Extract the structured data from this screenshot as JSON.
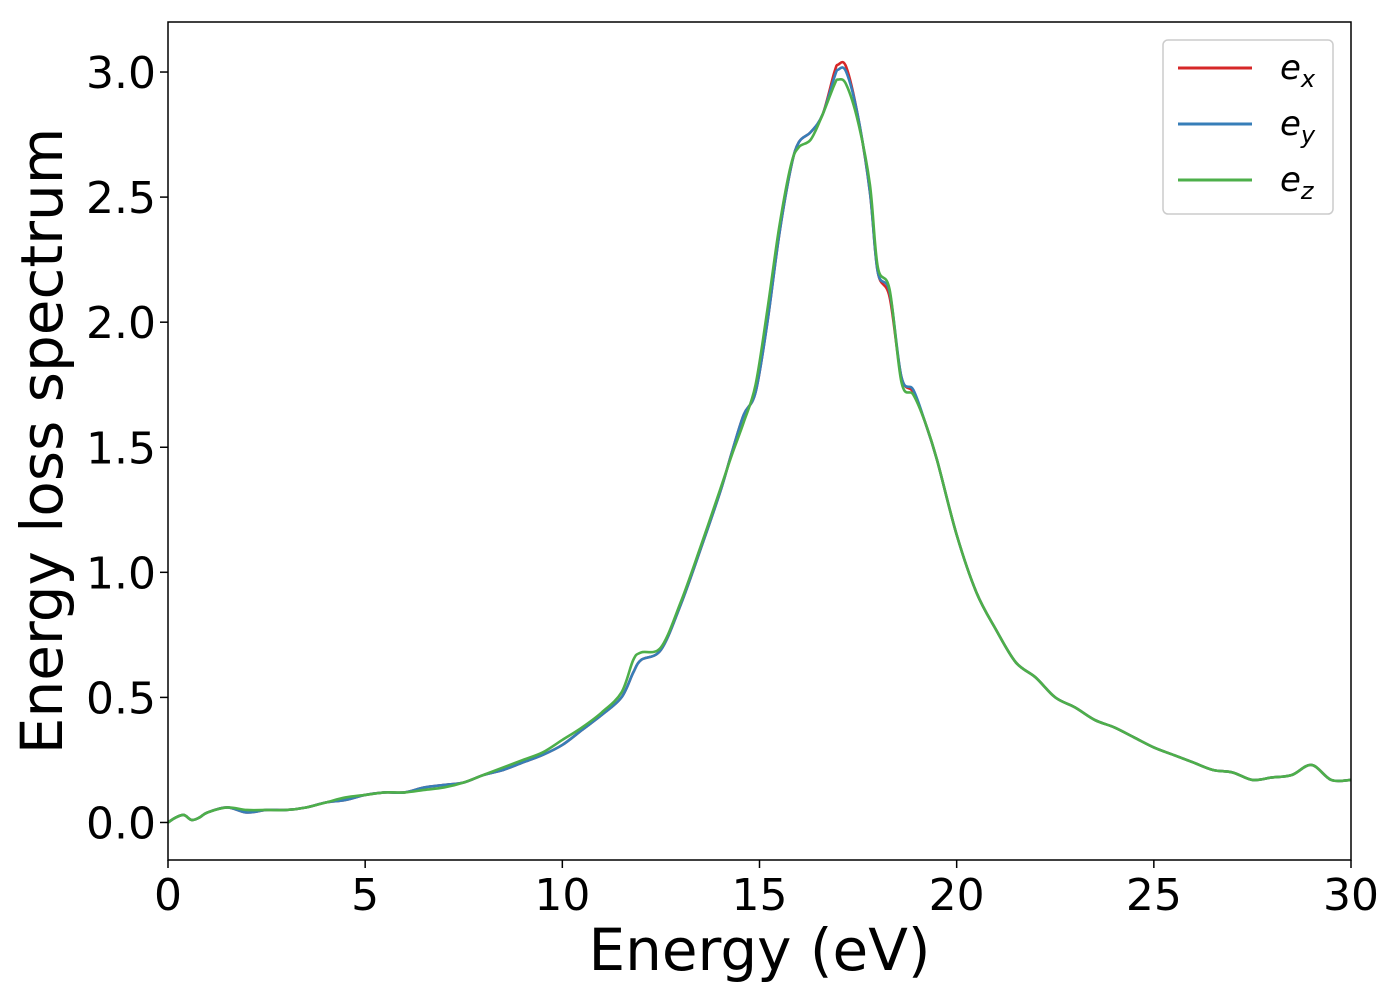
{
  "chart_data": {
    "type": "line",
    "xlabel": "Energy (eV)",
    "ylabel": "Energy loss spectrum",
    "xlim": [
      0,
      30
    ],
    "ylim": [
      -0.15,
      3.2
    ],
    "xticks": [
      0,
      5,
      10,
      15,
      20,
      25,
      30
    ],
    "xtick_labels": [
      "0",
      "5",
      "10",
      "15",
      "20",
      "25",
      "30"
    ],
    "yticks": [
      0.0,
      0.5,
      1.0,
      1.5,
      2.0,
      2.5,
      3.0
    ],
    "ytick_labels": [
      "0.0",
      "0.5",
      "1.0",
      "1.5",
      "2.0",
      "2.5",
      "3.0"
    ],
    "grid": false,
    "legend_position": "top-right",
    "x": [
      0,
      0.2,
      0.4,
      0.6,
      0.8,
      1.0,
      1.5,
      2.0,
      2.5,
      3.0,
      3.5,
      4.0,
      4.5,
      5.0,
      5.5,
      6.0,
      6.5,
      7.0,
      7.5,
      8.0,
      8.5,
      9.0,
      9.5,
      10.0,
      10.5,
      11.0,
      11.5,
      11.8,
      12.0,
      12.5,
      13.0,
      13.5,
      14.0,
      14.3,
      14.6,
      14.9,
      15.2,
      15.5,
      15.8,
      16.0,
      16.3,
      16.6,
      16.9,
      17.0,
      17.2,
      17.5,
      17.8,
      18.0,
      18.3,
      18.6,
      18.9,
      19.2,
      19.5,
      20.0,
      20.5,
      21.0,
      21.5,
      22.0,
      22.5,
      23.0,
      23.5,
      24.0,
      24.5,
      25.0,
      25.5,
      26.0,
      26.5,
      27.0,
      27.5,
      28.0,
      28.5,
      29.0,
      29.5,
      30.0
    ],
    "series": [
      {
        "name": "e_x",
        "label_base": "e",
        "label_sub": "x",
        "color": "#d62728",
        "values": [
          0.0,
          0.02,
          0.03,
          0.01,
          0.02,
          0.04,
          0.06,
          0.04,
          0.05,
          0.05,
          0.06,
          0.08,
          0.09,
          0.11,
          0.12,
          0.12,
          0.14,
          0.15,
          0.16,
          0.19,
          0.21,
          0.24,
          0.27,
          0.31,
          0.37,
          0.43,
          0.5,
          0.6,
          0.65,
          0.69,
          0.87,
          1.09,
          1.32,
          1.48,
          1.63,
          1.72,
          2.0,
          2.35,
          2.62,
          2.72,
          2.76,
          2.83,
          3.0,
          3.03,
          3.02,
          2.82,
          2.52,
          2.2,
          2.1,
          1.78,
          1.72,
          1.6,
          1.45,
          1.15,
          0.92,
          0.77,
          0.64,
          0.58,
          0.5,
          0.46,
          0.41,
          0.38,
          0.34,
          0.3,
          0.27,
          0.24,
          0.21,
          0.2,
          0.17,
          0.18,
          0.19,
          0.23,
          0.17,
          0.17
        ]
      },
      {
        "name": "e_y",
        "label_base": "e",
        "label_sub": "y",
        "color": "#377eb8",
        "values": [
          0.0,
          0.02,
          0.03,
          0.01,
          0.02,
          0.04,
          0.06,
          0.04,
          0.05,
          0.05,
          0.06,
          0.08,
          0.09,
          0.11,
          0.12,
          0.12,
          0.14,
          0.15,
          0.16,
          0.19,
          0.21,
          0.24,
          0.27,
          0.31,
          0.37,
          0.43,
          0.5,
          0.6,
          0.65,
          0.69,
          0.87,
          1.09,
          1.32,
          1.48,
          1.63,
          1.72,
          2.0,
          2.35,
          2.62,
          2.72,
          2.76,
          2.83,
          2.98,
          3.01,
          3.0,
          2.82,
          2.52,
          2.2,
          2.12,
          1.78,
          1.73,
          1.6,
          1.45,
          1.15,
          0.92,
          0.77,
          0.64,
          0.58,
          0.5,
          0.46,
          0.41,
          0.38,
          0.34,
          0.3,
          0.27,
          0.24,
          0.21,
          0.2,
          0.17,
          0.18,
          0.19,
          0.23,
          0.17,
          0.17
        ]
      },
      {
        "name": "e_z",
        "label_base": "e",
        "label_sub": "z",
        "color": "#4daf4a",
        "values": [
          0.0,
          0.02,
          0.03,
          0.01,
          0.02,
          0.04,
          0.06,
          0.05,
          0.05,
          0.05,
          0.06,
          0.08,
          0.1,
          0.11,
          0.12,
          0.12,
          0.13,
          0.14,
          0.16,
          0.19,
          0.22,
          0.25,
          0.28,
          0.33,
          0.38,
          0.44,
          0.52,
          0.65,
          0.68,
          0.7,
          0.88,
          1.1,
          1.33,
          1.47,
          1.6,
          1.75,
          2.05,
          2.38,
          2.63,
          2.7,
          2.73,
          2.83,
          2.95,
          2.97,
          2.95,
          2.8,
          2.55,
          2.22,
          2.13,
          1.76,
          1.71,
          1.6,
          1.45,
          1.15,
          0.92,
          0.77,
          0.64,
          0.58,
          0.5,
          0.46,
          0.41,
          0.38,
          0.34,
          0.3,
          0.27,
          0.24,
          0.21,
          0.2,
          0.17,
          0.18,
          0.19,
          0.23,
          0.17,
          0.17
        ]
      }
    ]
  }
}
